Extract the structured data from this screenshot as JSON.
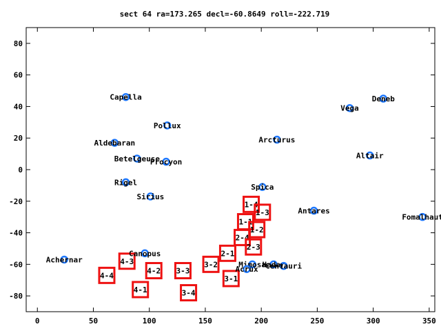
{
  "chart_data": {
    "type": "scatter",
    "title": "sect 64 ra=173.265 decl=-60.8649 roll=-222.719",
    "xlim": [
      -10,
      355
    ],
    "ylim": [
      -90,
      90
    ],
    "xticks": [
      0,
      50,
      100,
      150,
      200,
      250,
      300,
      350
    ],
    "yticks": [
      -80,
      -60,
      -40,
      -20,
      0,
      20,
      40,
      60,
      80
    ],
    "grid": false,
    "legend": "none",
    "colors": {
      "star": "#1e78ff",
      "sector": "#ee1111",
      "axis": "#000000"
    },
    "stars": [
      {
        "name": "Capella",
        "x": 79,
        "y": 46
      },
      {
        "name": "Deneb",
        "x": 309,
        "y": 45
      },
      {
        "name": "Vega",
        "x": 279,
        "y": 39
      },
      {
        "name": "Pollux",
        "x": 116,
        "y": 28
      },
      {
        "name": "Aldebaran",
        "x": 69,
        "y": 17
      },
      {
        "name": "Arcturus",
        "x": 214,
        "y": 19
      },
      {
        "name": "Altair",
        "x": 297,
        "y": 9
      },
      {
        "name": "Betelgeuse",
        "x": 89,
        "y": 7
      },
      {
        "name": "Procyon",
        "x": 115,
        "y": 5
      },
      {
        "name": "Rigel",
        "x": 79,
        "y": -8
      },
      {
        "name": "Spica",
        "x": 201,
        "y": -11
      },
      {
        "name": "Sirius",
        "x": 101,
        "y": -17
      },
      {
        "name": "Antares",
        "x": 247,
        "y": -26
      },
      {
        "name": "Fomalhaut",
        "x": 344,
        "y": -30
      },
      {
        "name": "Canopus",
        "x": 96,
        "y": -53
      },
      {
        "name": "Achernar",
        "x": 24,
        "y": -57
      },
      {
        "name": "Mimosa",
        "x": 192,
        "y": -60
      },
      {
        "name": "Acrux",
        "x": 187,
        "y": -63
      },
      {
        "name": "Hadar",
        "x": 211,
        "y": -60
      },
      {
        "name": "Centauri",
        "x": 220,
        "y": -61
      }
    ],
    "sectors": [
      {
        "label": "1-4",
        "x": 191,
        "y": -22
      },
      {
        "label": "1-3",
        "x": 201,
        "y": -27
      },
      {
        "label": "1-1",
        "x": 186,
        "y": -33
      },
      {
        "label": "1-2",
        "x": 196,
        "y": -38
      },
      {
        "label": "2-4",
        "x": 183,
        "y": -43
      },
      {
        "label": "2-3",
        "x": 193,
        "y": -49
      },
      {
        "label": "2-1",
        "x": 170,
        "y": -53
      },
      {
        "label": "3-2",
        "x": 155,
        "y": -60
      },
      {
        "label": "3-3",
        "x": 130,
        "y": -64
      },
      {
        "label": "3-4",
        "x": 135,
        "y": -78
      },
      {
        "label": "3-1",
        "x": 173,
        "y": -69
      },
      {
        "label": "4-3",
        "x": 80,
        "y": -58
      },
      {
        "label": "4-2",
        "x": 104,
        "y": -64
      },
      {
        "label": "4-4",
        "x": 62,
        "y": -67
      },
      {
        "label": "4-1",
        "x": 92,
        "y": -76
      }
    ]
  }
}
